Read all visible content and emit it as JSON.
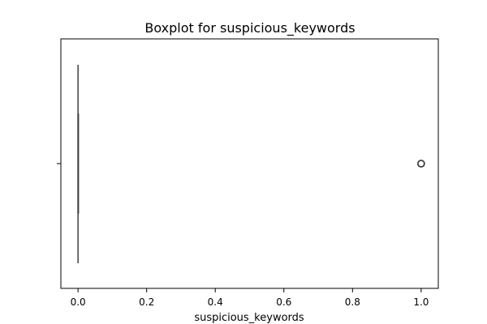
{
  "chart_data": {
    "type": "boxplot",
    "title": "Boxplot for suspicious_keywords",
    "xlabel": "suspicious_keywords",
    "ylabel": "",
    "xlim": [
      -0.05,
      1.05
    ],
    "xticks": [
      0.0,
      0.2,
      0.4,
      0.6,
      0.8,
      1.0
    ],
    "xtick_labels": [
      "0.0",
      "0.2",
      "0.4",
      "0.6",
      "0.8",
      "1.0"
    ],
    "orientation": "horizontal",
    "grid": false,
    "box": {
      "q1": 0.0,
      "median": 0.0,
      "q3": 0.0,
      "whisker_low": 0.0,
      "whisker_high": 0.0
    },
    "outliers": [
      1.0
    ],
    "colors": {
      "box_line": "#3f3f3f",
      "outlier_edge": "#3f3f3f",
      "axes": "#000000"
    }
  }
}
